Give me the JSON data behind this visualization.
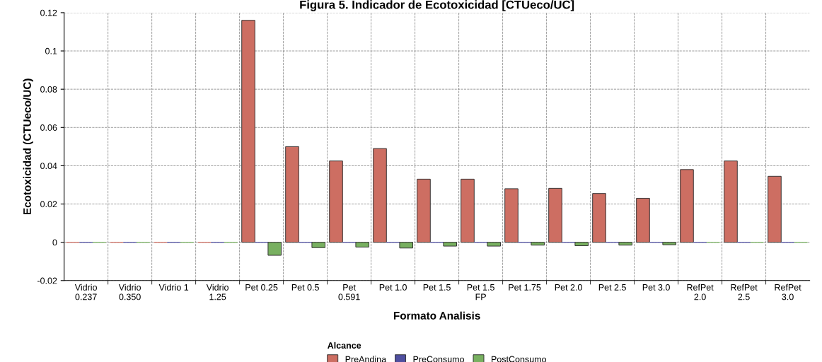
{
  "chart_data": {
    "type": "bar",
    "title": "Figura 5. Indicador de Ecotoxicidad [CTUeco/UC]",
    "xlabel": "Formato Analisis",
    "ylabel": "Ecotoxicidad (CTUeco/UC)",
    "legend_title": "Alcance",
    "categories": [
      "Vidrio\n0.237",
      "Vidrio\n0.350",
      "Vidrio 1",
      "Vidrio\n1.25",
      "Pet 0.25",
      "Pet 0.5",
      "Pet\n0.591",
      "Pet 1.0",
      "Pet 1.5",
      "Pet 1.5\nFP",
      "Pet 1.75",
      "Pet 2.0",
      "Pet 2.5",
      "Pet 3.0",
      "RefPet\n2.0",
      "RefPet\n2.5",
      "RefPet\n3.0"
    ],
    "series": [
      {
        "name": "PreAndina",
        "color": "#cd6e62",
        "values": [
          0,
          0,
          0,
          0,
          0.116,
          0.05,
          0.0425,
          0.049,
          0.033,
          0.033,
          0.028,
          0.0282,
          0.0255,
          0.023,
          0.038,
          0.0425,
          0.0345
        ]
      },
      {
        "name": "PreConsumo",
        "color": "#4f4fa0",
        "values": [
          0,
          0,
          0,
          0,
          0,
          0,
          0,
          0,
          0,
          0,
          0,
          0,
          0,
          0,
          0,
          0,
          0
        ]
      },
      {
        "name": "PostConsumo",
        "color": "#78b060",
        "values": [
          0,
          0,
          0,
          0,
          -0.0068,
          -0.0028,
          -0.0025,
          -0.003,
          -0.002,
          -0.002,
          -0.0015,
          -0.0018,
          -0.0015,
          -0.0013,
          0,
          0,
          0
        ]
      }
    ],
    "ylim": [
      -0.02,
      0.12
    ],
    "yticks": [
      -0.02,
      0,
      0.02,
      0.04,
      0.06,
      0.08,
      0.1,
      0.12
    ],
    "grid": true,
    "legend": "bottom"
  }
}
